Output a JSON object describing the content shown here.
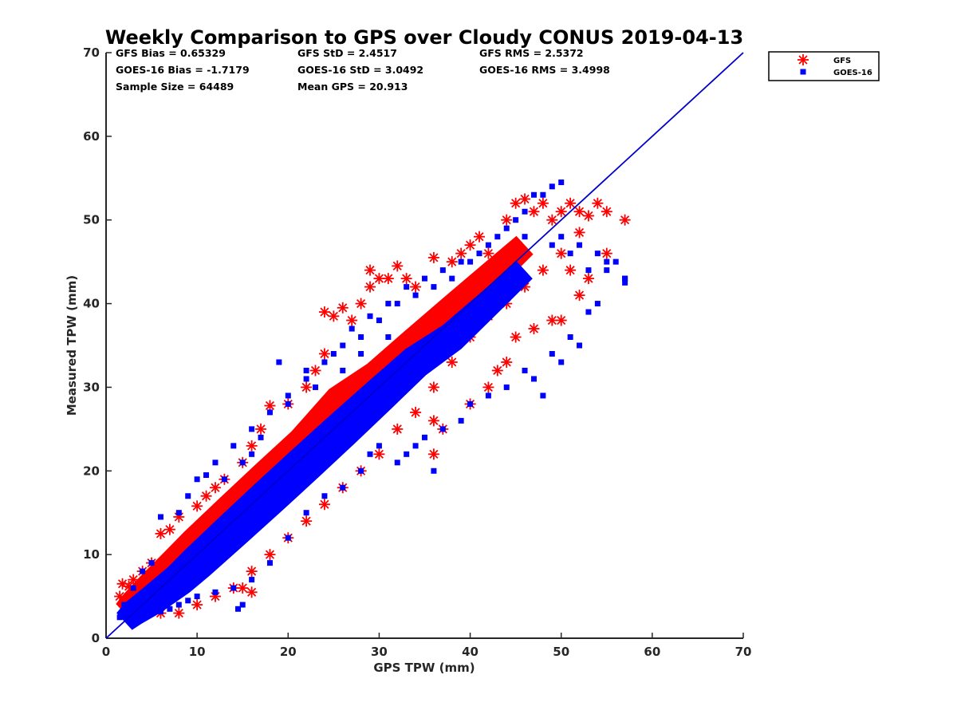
{
  "chart_data": {
    "type": "scatter",
    "title": "Weekly Comparison to GPS over Cloudy CONUS 2019-04-13",
    "xlabel": "GPS TPW (mm)",
    "ylabel": "Measured TPW (mm)",
    "xlim": [
      0,
      70
    ],
    "ylim": [
      0,
      70
    ],
    "xticks": [
      "0",
      "10",
      "20",
      "30",
      "40",
      "50",
      "60",
      "70"
    ],
    "yticks": [
      "0",
      "10",
      "20",
      "30",
      "40",
      "50",
      "60",
      "70"
    ],
    "grid": false,
    "legend_position": "outside top-right",
    "colors": {
      "GFS": "#ff0000",
      "GOES-16": "#0000ff",
      "one_to_one": "#0000cc"
    },
    "stats": [
      [
        "GFS Bias = 0.65329",
        "GFS StD = 2.4517",
        "GFS RMS = 2.5372"
      ],
      [
        "GOES-16 Bias = -1.7179",
        "GOES-16 StD = 3.0492",
        "GOES-16 RMS = 3.4998"
      ],
      [
        "Sample Size = 64489",
        "Mean GPS = 20.913"
      ]
    ],
    "one_to_one_line": {
      "x": [
        0,
        70
      ],
      "y": [
        0,
        70
      ]
    },
    "series": [
      {
        "name": "GFS",
        "marker": "asterisk",
        "cloud": [
          [
            2,
            3
          ],
          [
            3,
            4
          ],
          [
            5,
            6
          ],
          [
            8,
            9
          ],
          [
            10,
            11
          ],
          [
            14,
            15
          ],
          [
            18,
            19
          ],
          [
            22,
            23
          ],
          [
            26,
            28
          ],
          [
            30,
            31
          ],
          [
            34,
            35
          ],
          [
            38,
            39
          ],
          [
            42,
            43
          ],
          [
            46,
            47
          ]
        ],
        "points": [
          [
            1.5,
            5
          ],
          [
            1.8,
            6.5
          ],
          [
            2.5,
            6.2
          ],
          [
            3,
            7
          ],
          [
            4,
            8
          ],
          [
            5,
            9
          ],
          [
            6,
            12.5
          ],
          [
            7,
            13
          ],
          [
            8,
            14.5
          ],
          [
            10,
            15.8
          ],
          [
            12,
            18
          ],
          [
            13,
            19
          ],
          [
            15,
            21
          ],
          [
            16,
            23
          ],
          [
            17,
            25
          ],
          [
            18,
            27.8
          ],
          [
            20,
            28
          ],
          [
            22,
            30
          ],
          [
            23,
            32
          ],
          [
            24,
            34
          ],
          [
            24,
            39
          ],
          [
            25,
            38.5
          ],
          [
            26,
            39.5
          ],
          [
            27,
            38
          ],
          [
            28,
            40
          ],
          [
            29,
            42
          ],
          [
            29,
            44
          ],
          [
            30,
            43
          ],
          [
            31,
            43
          ],
          [
            32,
            44.5
          ],
          [
            33,
            43
          ],
          [
            34,
            42
          ],
          [
            36,
            45.5
          ],
          [
            38,
            45
          ],
          [
            39,
            46
          ],
          [
            40,
            47
          ],
          [
            41,
            48
          ],
          [
            42,
            46
          ],
          [
            44,
            50
          ],
          [
            45,
            52
          ],
          [
            46,
            52.5
          ],
          [
            47,
            51
          ],
          [
            48,
            52
          ],
          [
            49,
            50
          ],
          [
            50,
            51
          ],
          [
            51,
            52
          ],
          [
            52,
            51
          ],
          [
            53,
            50.5
          ],
          [
            54,
            52
          ],
          [
            55,
            51
          ],
          [
            57,
            50
          ],
          [
            52,
            48.5
          ],
          [
            50,
            46
          ],
          [
            48,
            44
          ],
          [
            46,
            42
          ],
          [
            44,
            40
          ],
          [
            42,
            38.5
          ],
          [
            40,
            36
          ],
          [
            38,
            33
          ],
          [
            36,
            30
          ],
          [
            34,
            27
          ],
          [
            32,
            25
          ],
          [
            30,
            22
          ],
          [
            28,
            20
          ],
          [
            26,
            18
          ],
          [
            24,
            16
          ],
          [
            22,
            14
          ],
          [
            20,
            12
          ],
          [
            18,
            10
          ],
          [
            16,
            8
          ],
          [
            14,
            6
          ],
          [
            12,
            5
          ],
          [
            10,
            4
          ],
          [
            8,
            3
          ],
          [
            6,
            3
          ],
          [
            4,
            3
          ],
          [
            3,
            3
          ],
          [
            15,
            6
          ],
          [
            16,
            5.5
          ],
          [
            11,
            17
          ],
          [
            36,
            22
          ],
          [
            36,
            26
          ],
          [
            37,
            25
          ],
          [
            40,
            28
          ],
          [
            42,
            30
          ],
          [
            43,
            32
          ],
          [
            44,
            33
          ],
          [
            45,
            36
          ],
          [
            47,
            37
          ],
          [
            49,
            38
          ],
          [
            50,
            38
          ],
          [
            52,
            41
          ],
          [
            53,
            43
          ],
          [
            51,
            44
          ],
          [
            55,
            46
          ],
          [
            13,
            11
          ]
        ]
      },
      {
        "name": "GOES-16",
        "marker": "square",
        "cloud": [
          [
            2,
            2
          ],
          [
            3,
            3
          ],
          [
            5,
            4.5
          ],
          [
            8,
            7
          ],
          [
            10,
            9
          ],
          [
            14,
            13
          ],
          [
            18,
            17
          ],
          [
            22,
            21
          ],
          [
            26,
            25
          ],
          [
            30,
            29
          ],
          [
            34,
            33
          ],
          [
            38,
            36
          ],
          [
            42,
            40
          ],
          [
            46,
            44
          ]
        ],
        "points": [
          [
            1.5,
            2.5
          ],
          [
            2,
            3
          ],
          [
            3,
            2.5
          ],
          [
            4,
            2.8
          ],
          [
            5,
            3
          ],
          [
            6,
            3.2
          ],
          [
            7,
            3.5
          ],
          [
            8,
            4
          ],
          [
            9,
            4.5
          ],
          [
            10,
            5
          ],
          [
            12,
            5.5
          ],
          [
            14,
            6
          ],
          [
            15,
            4
          ],
          [
            14.5,
            3.5
          ],
          [
            16,
            7
          ],
          [
            18,
            9
          ],
          [
            20,
            12
          ],
          [
            22,
            15
          ],
          [
            24,
            17
          ],
          [
            26,
            18
          ],
          [
            28,
            20
          ],
          [
            29,
            22
          ],
          [
            30,
            23
          ],
          [
            32,
            21
          ],
          [
            33,
            22
          ],
          [
            34,
            23
          ],
          [
            35,
            24
          ],
          [
            36,
            20
          ],
          [
            37,
            25
          ],
          [
            39,
            26
          ],
          [
            40,
            28
          ],
          [
            42,
            29
          ],
          [
            44,
            30
          ],
          [
            46,
            32
          ],
          [
            47,
            31
          ],
          [
            48,
            29
          ],
          [
            49,
            34
          ],
          [
            50,
            33
          ],
          [
            51,
            36
          ],
          [
            52,
            35
          ],
          [
            53,
            39
          ],
          [
            54,
            40
          ],
          [
            55,
            44
          ],
          [
            56,
            45
          ],
          [
            57,
            43
          ],
          [
            57,
            42.5
          ],
          [
            54,
            46
          ],
          [
            52,
            47
          ],
          [
            50,
            48
          ],
          [
            48,
            53
          ],
          [
            49,
            54
          ],
          [
            50,
            54.5
          ],
          [
            47,
            53
          ],
          [
            46,
            51
          ],
          [
            45,
            50
          ],
          [
            44,
            49
          ],
          [
            42,
            47
          ],
          [
            40,
            45
          ],
          [
            38,
            43
          ],
          [
            36,
            42
          ],
          [
            34,
            41
          ],
          [
            32,
            40
          ],
          [
            30,
            38
          ],
          [
            28,
            36
          ],
          [
            26,
            35
          ],
          [
            24,
            33
          ],
          [
            22,
            31
          ],
          [
            20,
            29
          ],
          [
            19,
            33
          ],
          [
            18,
            27
          ],
          [
            16,
            25
          ],
          [
            14,
            23
          ],
          [
            12,
            21
          ],
          [
            10,
            19
          ],
          [
            9,
            17
          ],
          [
            8,
            15
          ],
          [
            6,
            14.5
          ],
          [
            5,
            9
          ],
          [
            4,
            8
          ],
          [
            3,
            6
          ],
          [
            2,
            4
          ],
          [
            11,
            19.5
          ],
          [
            16,
            22
          ],
          [
            22,
            32
          ],
          [
            25,
            34
          ],
          [
            27,
            37
          ],
          [
            29,
            38.5
          ],
          [
            31,
            40
          ],
          [
            33,
            42
          ],
          [
            35,
            43
          ],
          [
            37,
            44
          ],
          [
            39,
            45
          ],
          [
            41,
            46
          ],
          [
            43,
            48
          ],
          [
            46,
            48
          ],
          [
            49,
            47
          ],
          [
            51,
            46
          ],
          [
            53,
            44
          ],
          [
            55,
            45
          ],
          [
            57,
            43
          ],
          [
            13,
            19
          ],
          [
            15,
            21
          ],
          [
            17,
            24
          ],
          [
            20,
            28
          ],
          [
            23,
            30
          ],
          [
            26,
            32
          ],
          [
            28,
            34
          ],
          [
            31,
            36
          ]
        ]
      }
    ]
  }
}
